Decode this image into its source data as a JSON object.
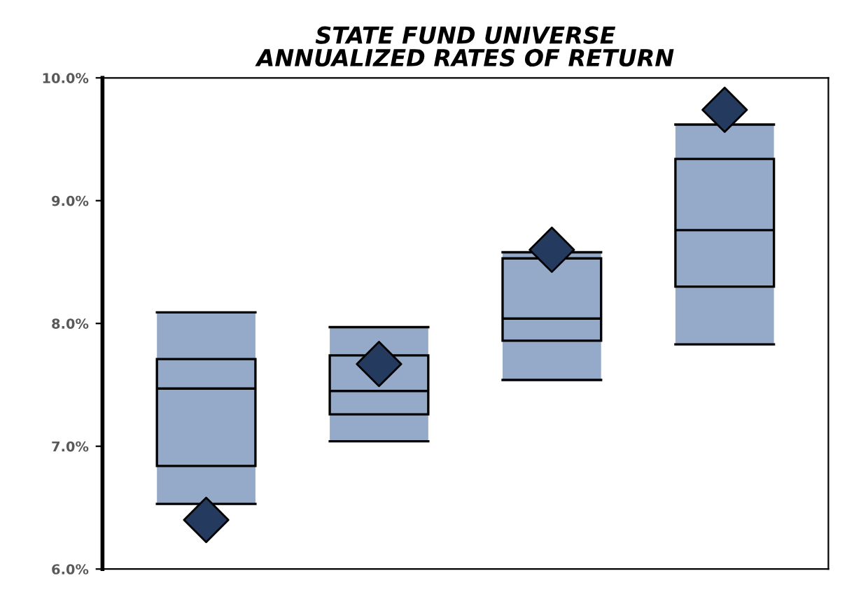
{
  "chart_data": {
    "type": "box",
    "title": "STATE FUND UNIVERSE\nANNUALIZED RATES OF RETURN",
    "categories": [
      null,
      null,
      null,
      null
    ],
    "color": "#95a9c9",
    "boxes": [
      {
        "low": 6.53,
        "q1": 6.84,
        "median": 7.47,
        "q3": 7.71,
        "high": 8.09
      },
      {
        "low": 7.04,
        "q1": 7.26,
        "median": 7.45,
        "q3": 7.74,
        "high": 7.97
      },
      {
        "low": 7.54,
        "q1": 7.86,
        "median": 8.04,
        "q3": 8.53,
        "high": 8.58
      },
      {
        "low": 7.83,
        "q1": 8.3,
        "median": 8.76,
        "q3": 9.34,
        "high": 9.62
      }
    ],
    "series": [
      {
        "type": "scatter",
        "color": "#243a5e",
        "marker": "diamond",
        "values": [
          6.4,
          7.67,
          8.6,
          9.74
        ]
      }
    ],
    "ylim": [
      6,
      10
    ],
    "yticks": [
      {
        "value": 6,
        "label": "6.0%"
      },
      {
        "value": 7,
        "label": "7.0%"
      },
      {
        "value": 8,
        "label": "8.0%"
      },
      {
        "value": 9,
        "label": "9.0%"
      },
      {
        "value": 10,
        "label": "10.0%"
      }
    ],
    "tick_labels": "y",
    "grid": false,
    "legend": false
  }
}
